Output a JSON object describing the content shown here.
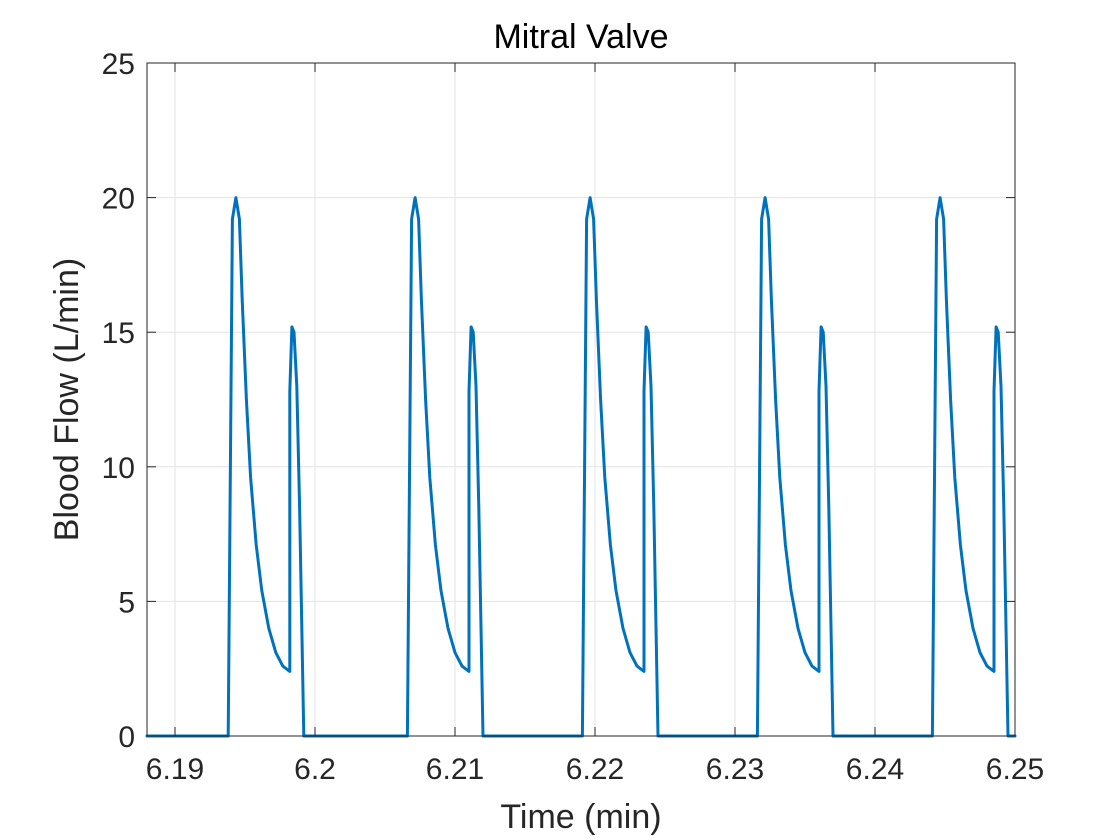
{
  "chart_data": {
    "type": "line",
    "title": "Mitral Valve",
    "xlabel": "Time (min)",
    "ylabel": "Blood Flow (L/min)",
    "xlim": [
      6.188,
      6.25
    ],
    "ylim": [
      0,
      25
    ],
    "xticks": [
      6.19,
      6.2,
      6.21,
      6.22,
      6.23,
      6.24,
      6.25
    ],
    "xtick_labels": [
      "6.19",
      "6.2",
      "6.21",
      "6.22",
      "6.23",
      "6.24",
      "6.25"
    ],
    "yticks": [
      0,
      5,
      10,
      15,
      20,
      25
    ],
    "ytick_labels": [
      "0",
      "5",
      "10",
      "15",
      "20",
      "25"
    ],
    "grid": true,
    "box": true,
    "line_color": "#0072BD",
    "series": [
      {
        "x": [
          6.188,
          6.1938,
          6.1941,
          6.19435,
          6.1946,
          6.1948,
          6.1951,
          6.1954,
          6.1958,
          6.1962,
          6.1967,
          6.1972,
          6.1977,
          6.1982,
          6.1982,
          6.19835,
          6.1985,
          6.1987,
          6.1989,
          6.1992,
          6.1996,
          6.2066,
          6.2069,
          6.20715,
          6.2074,
          6.2076,
          6.2079,
          6.2082,
          6.2086,
          6.209,
          6.2095,
          6.21,
          6.2105,
          6.211,
          6.211,
          6.21115,
          6.2113,
          6.2115,
          6.2117,
          6.212,
          6.2124,
          6.2191,
          6.2194,
          6.21965,
          6.2199,
          6.2201,
          6.2204,
          6.2207,
          6.2211,
          6.2215,
          6.222,
          6.2225,
          6.223,
          6.2235,
          6.2235,
          6.22365,
          6.2238,
          6.224,
          6.2242,
          6.2245,
          6.2249,
          6.2316,
          6.2319,
          6.23215,
          6.2324,
          6.2326,
          6.2329,
          6.2332,
          6.2336,
          6.234,
          6.2345,
          6.235,
          6.2355,
          6.236,
          6.236,
          6.23615,
          6.2363,
          6.2365,
          6.2367,
          6.237,
          6.2374,
          6.2441,
          6.2444,
          6.24465,
          6.2449,
          6.2451,
          6.2454,
          6.2457,
          6.2461,
          6.2465,
          6.247,
          6.2475,
          6.248,
          6.2485,
          6.2485,
          6.24865,
          6.2488,
          6.249,
          6.2492,
          6.2495,
          6.25
        ],
        "y": [
          0,
          0,
          19.2,
          20,
          19.2,
          16.2,
          12.5,
          9.6,
          7.1,
          5.4,
          4.0,
          3.1,
          2.6,
          2.4,
          12.8,
          15.2,
          15.0,
          13.0,
          8.5,
          0,
          0,
          0,
          19.2,
          20,
          19.2,
          16.2,
          12.5,
          9.6,
          7.1,
          5.4,
          4.0,
          3.1,
          2.6,
          2.4,
          12.8,
          15.2,
          15.0,
          13.0,
          8.5,
          0,
          0,
          0,
          19.2,
          20,
          19.2,
          16.2,
          12.5,
          9.6,
          7.1,
          5.4,
          4.0,
          3.1,
          2.6,
          2.4,
          12.8,
          15.2,
          15.0,
          13.0,
          8.5,
          0,
          0,
          0,
          19.2,
          20,
          19.2,
          16.2,
          12.5,
          9.6,
          7.1,
          5.4,
          4.0,
          3.1,
          2.6,
          2.4,
          12.8,
          15.2,
          15.0,
          13.0,
          8.5,
          0,
          0,
          0,
          19.2,
          20,
          19.2,
          16.2,
          12.5,
          9.6,
          7.1,
          5.4,
          4.0,
          3.1,
          2.6,
          2.4,
          12.8,
          15.2,
          15.0,
          13.0,
          8.5,
          0,
          0
        ]
      }
    ]
  }
}
